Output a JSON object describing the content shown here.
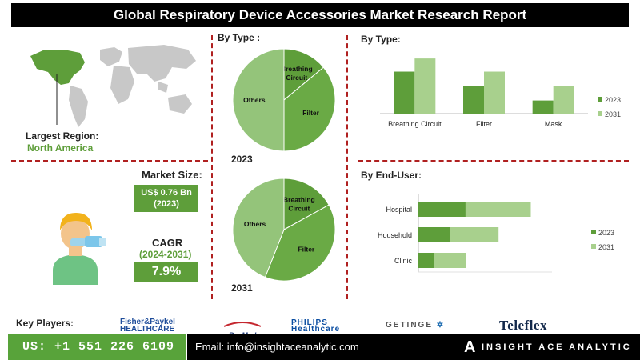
{
  "title": "Global Respiratory Device Accessories Market Research Report",
  "region": {
    "label": "Largest Region:",
    "value": "North America"
  },
  "market_size": {
    "label": "Market Size:",
    "value": "US$ 0.76 Bn",
    "year": "(2023)"
  },
  "cagr": {
    "label": "CAGR",
    "period": "(2024-2031)",
    "value": "7.9%"
  },
  "pie_header": "By Type :",
  "pie_years": [
    "2023",
    "2031"
  ],
  "bar_header": "By  Type:",
  "enduser_header": "By End-User:",
  "key_players_label": "Key Players:",
  "players": [
    "Fisher&Paykel HEALTHCARE",
    "ResMed",
    "PHILIPS Healthcare",
    "GETINGE",
    "Teleflex"
  ],
  "contact": {
    "phone": "US: +1 551 226 6109",
    "email": "Email: info@insightaceanalytic.com",
    "brand": "INSIGHT ACE ANALYTIC"
  },
  "colors": {
    "dark_green": "#5e9e3a",
    "light_green": "#a8d08d",
    "pie_mid": "#6aaa45",
    "pie_light": "#94c47a",
    "dashed": "#b02020"
  },
  "chart_data": [
    {
      "type": "pie",
      "title": "2023",
      "labels": [
        "Breathing Circuit",
        "Filter",
        "Others"
      ],
      "values": [
        14,
        36,
        50
      ],
      "colors": [
        "#5e9e3a",
        "#6aaa45",
        "#94c47a"
      ]
    },
    {
      "type": "pie",
      "title": "2031",
      "labels": [
        "Breathing Circuit",
        "Filter",
        "Others"
      ],
      "values": [
        17,
        39,
        44
      ],
      "colors": [
        "#5e9e3a",
        "#6aaa45",
        "#94c47a"
      ]
    },
    {
      "type": "bar",
      "title": "By  Type:",
      "categories": [
        "Breathing Circuit",
        "Filter",
        "Mask"
      ],
      "series": [
        {
          "name": "2023",
          "values": [
            32,
            21,
            10
          ]
        },
        {
          "name": "2031",
          "values": [
            42,
            32,
            21
          ]
        }
      ],
      "ylim": [
        0,
        50
      ],
      "legend": "right"
    },
    {
      "type": "bar",
      "orientation": "horizontal-stacked",
      "title": "By End-User:",
      "categories": [
        "Hospital",
        "Household",
        "Clinic"
      ],
      "series": [
        {
          "name": "2023",
          "values": [
            60,
            40,
            20
          ]
        },
        {
          "name": "2031",
          "values": [
            83,
            62,
            41
          ]
        }
      ],
      "xlim": [
        0,
        170
      ],
      "legend": "right"
    }
  ]
}
